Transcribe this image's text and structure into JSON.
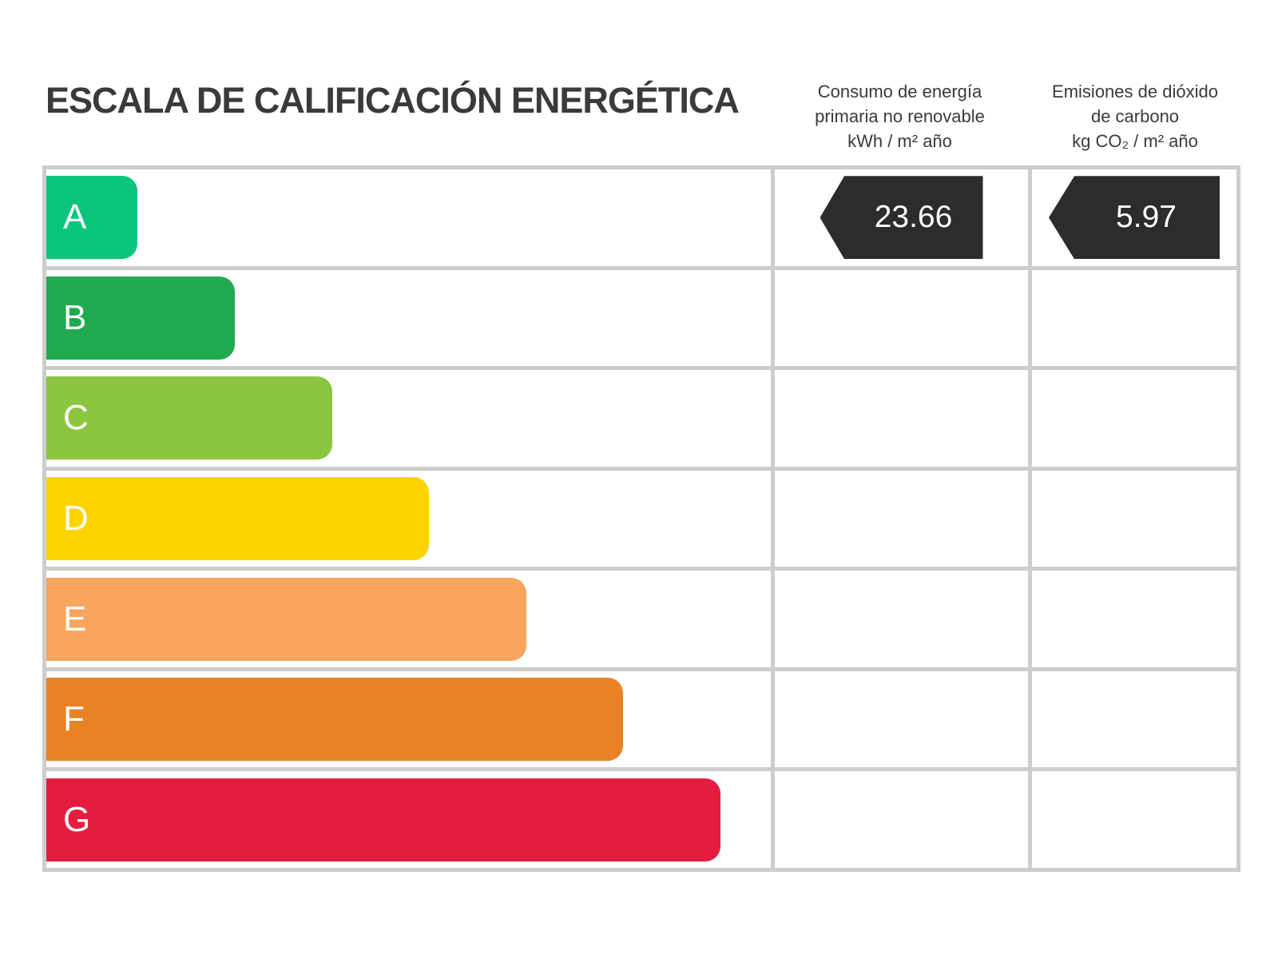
{
  "title": "ESCALA DE CALIFICACIÓN ENERGÉTICA",
  "column_headers": {
    "energy": [
      "Consumo de energía",
      "primaria no renovable",
      "kWh / m² año"
    ],
    "emissions": [
      "Emisiones de dióxido",
      "de carbono",
      "kg CO₂ / m² año"
    ]
  },
  "chart_data": {
    "type": "bar",
    "title": "ESCALA DE CALIFICACIÓN ENERGÉTICA",
    "categories": [
      "A",
      "B",
      "C",
      "D",
      "E",
      "F",
      "G"
    ],
    "rows": [
      {
        "label": "A",
        "color": "#0bc47e",
        "length_pct": 12.6,
        "energy_value": "23.66",
        "emissions_value": "5.97"
      },
      {
        "label": "B",
        "color": "#21a950",
        "length_pct": 26.0,
        "energy_value": null,
        "emissions_value": null
      },
      {
        "label": "C",
        "color": "#8cc63f",
        "length_pct": 39.5,
        "energy_value": null,
        "emissions_value": null
      },
      {
        "label": "D",
        "color": "#fdd400",
        "length_pct": 52.8,
        "energy_value": null,
        "emissions_value": null
      },
      {
        "label": "E",
        "color": "#f8a55e",
        "length_pct": 66.3,
        "energy_value": null,
        "emissions_value": null
      },
      {
        "label": "F",
        "color": "#e98223",
        "length_pct": 79.6,
        "energy_value": null,
        "emissions_value": null
      },
      {
        "label": "G",
        "color": "#e41c3f",
        "length_pct": 93.1,
        "energy_value": null,
        "emissions_value": null
      }
    ],
    "indicators": [
      {
        "name": "Consumo de energía primaria no renovable",
        "unit": "kWh / m² año",
        "value": 23.66,
        "rating_row": "A"
      },
      {
        "name": "Emisiones de dióxido de carbono",
        "unit": "kg CO₂ / m² año",
        "value": 5.97,
        "rating_row": "A"
      }
    ],
    "arrow_color": "#2d2b2b",
    "legend": "none",
    "grid_lines": "on"
  }
}
